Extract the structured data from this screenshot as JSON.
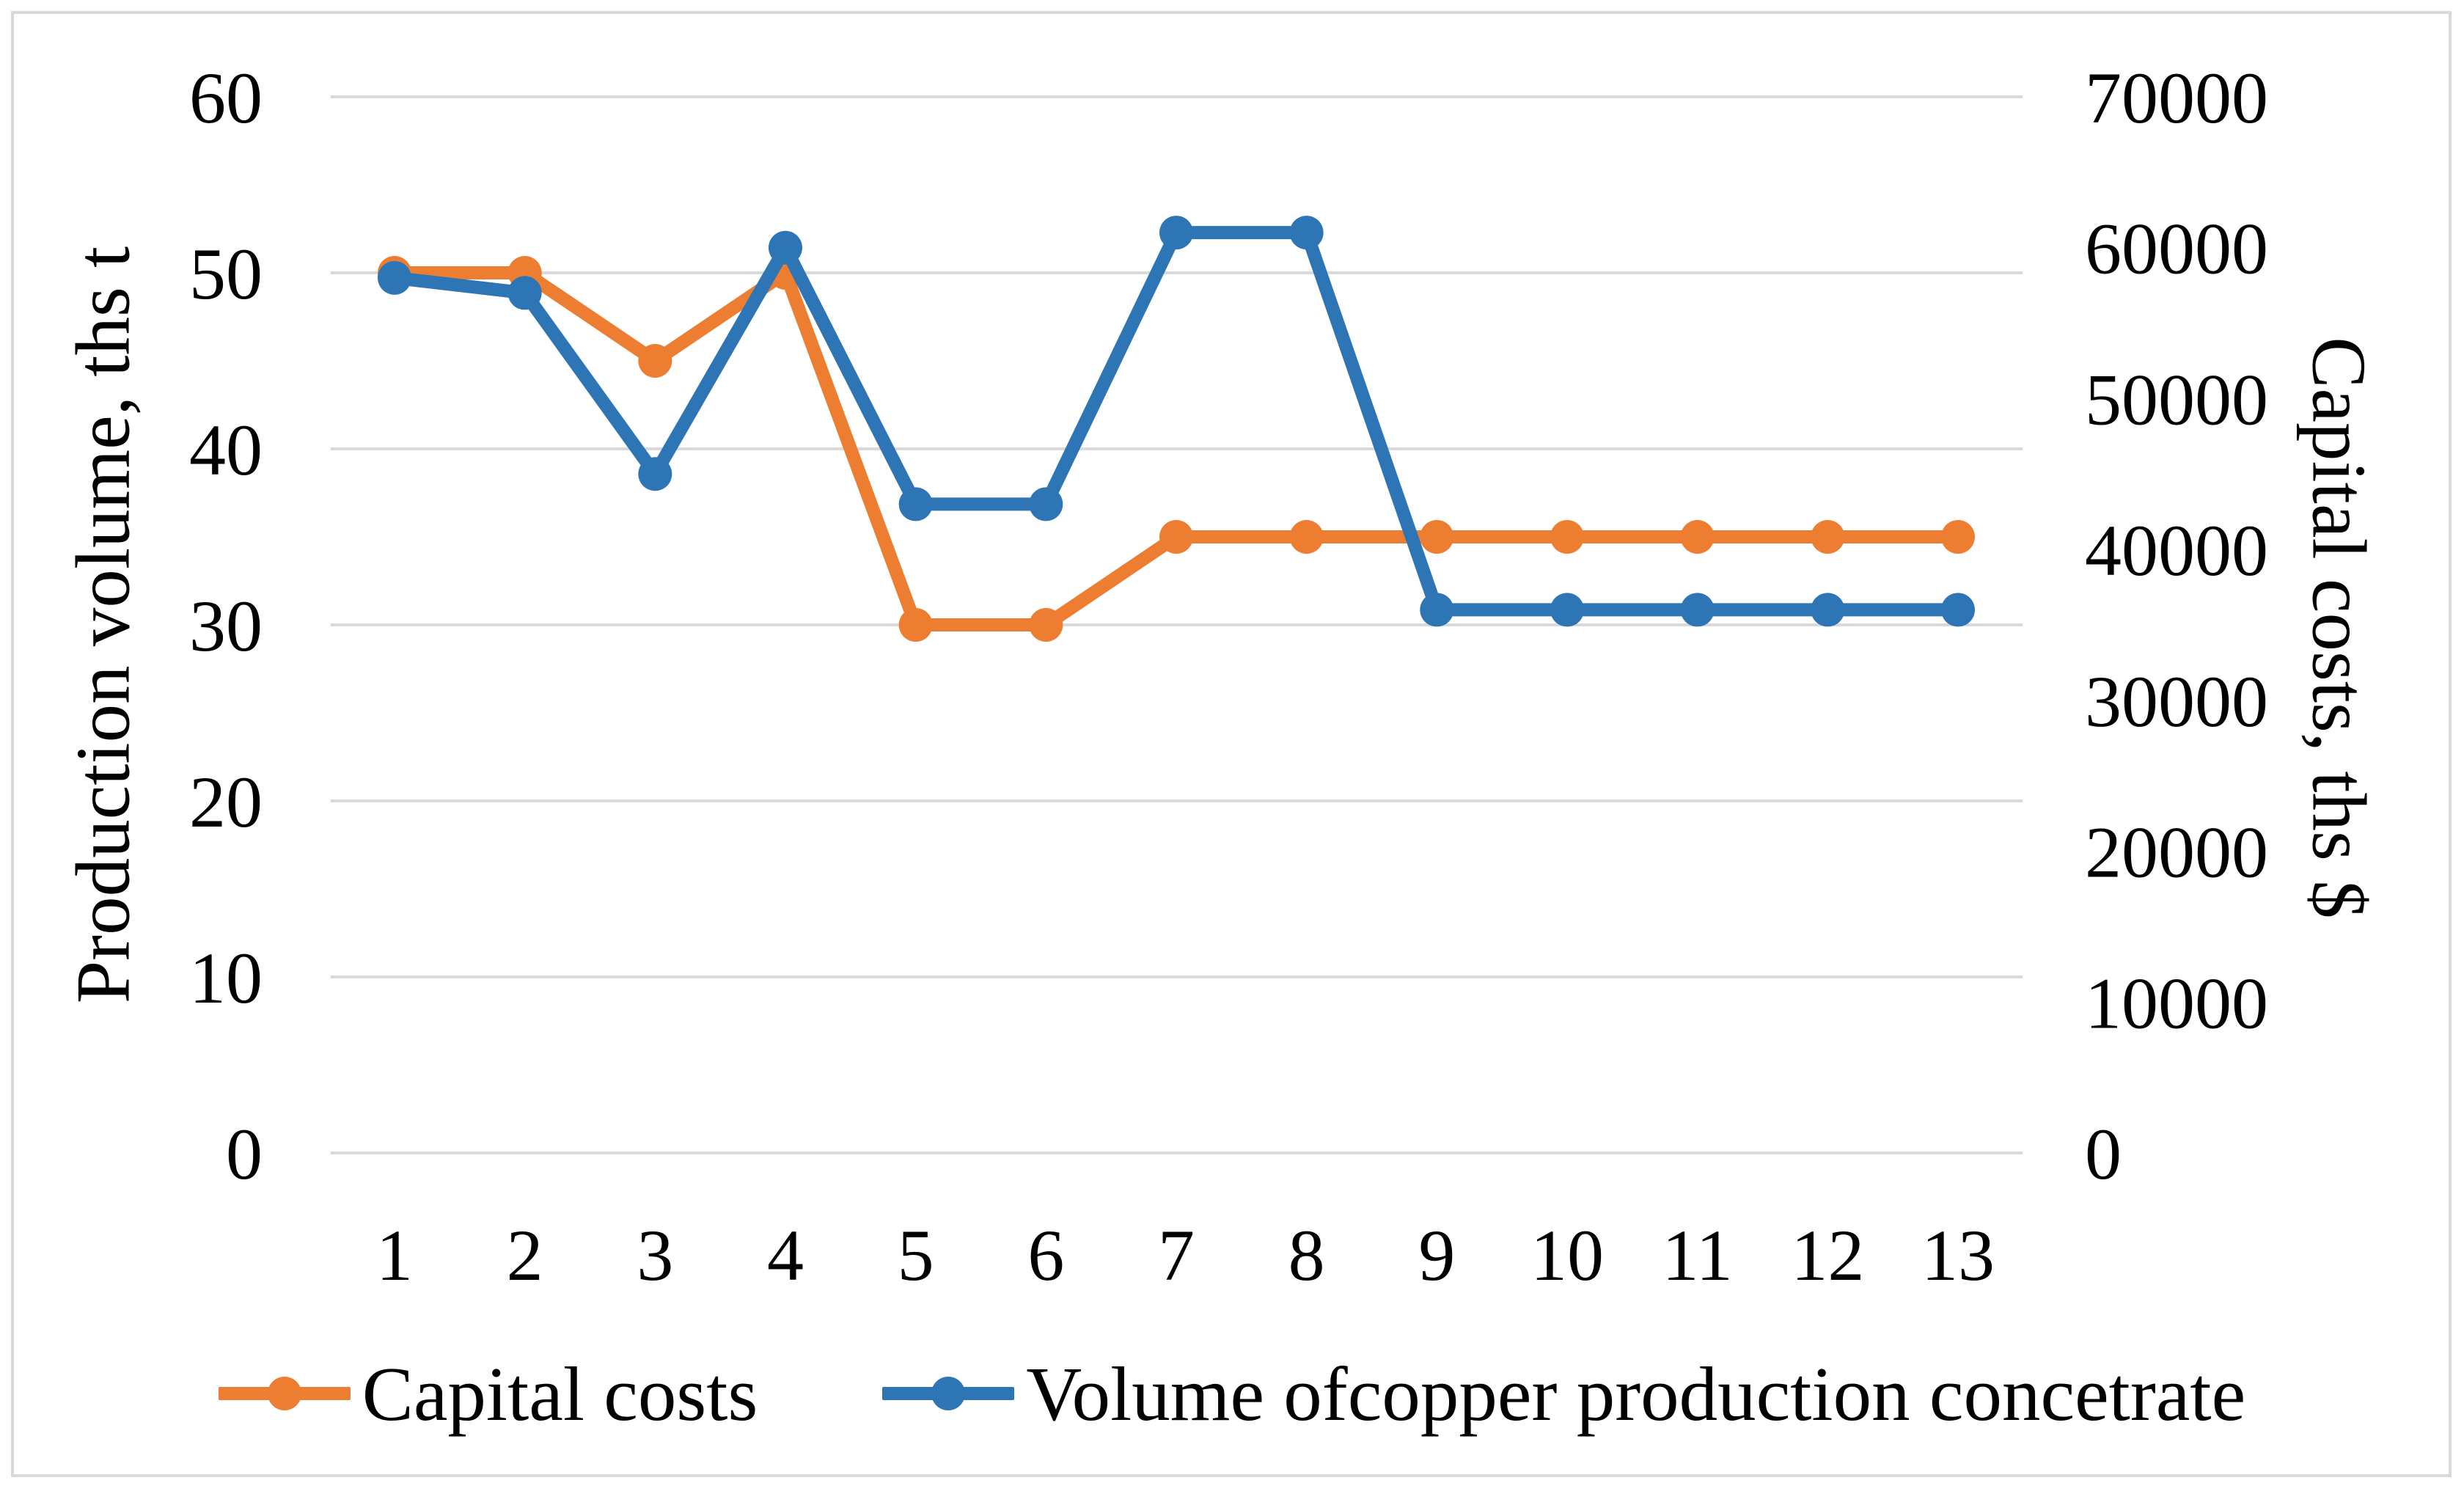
{
  "chart_data": {
    "type": "line",
    "x": [
      1,
      2,
      3,
      4,
      5,
      6,
      7,
      8,
      9,
      10,
      11,
      12,
      13
    ],
    "x_axis": {
      "tick_labels": [
        "1",
        "2",
        "3",
        "4",
        "5",
        "6",
        "7",
        "8",
        "9",
        "10",
        "11",
        "12",
        "13"
      ]
    },
    "left_axis": {
      "title": "Production volume, ths t",
      "min": 0,
      "max": 60,
      "ticks": [
        0,
        10,
        20,
        30,
        40,
        50,
        60
      ],
      "tick_labels": [
        "0",
        "10",
        "20",
        "30",
        "40",
        "50",
        "60"
      ]
    },
    "right_axis": {
      "title": "Capital costs, ths $",
      "min": 0,
      "max": 70000,
      "ticks": [
        0,
        10000,
        20000,
        30000,
        40000,
        50000,
        60000,
        70000
      ],
      "tick_labels": [
        "0",
        "10000",
        "20000",
        "30000",
        "40000",
        "50000",
        "60000",
        "70000"
      ]
    },
    "series": [
      {
        "name": "Capital costs",
        "axis": "left",
        "color": "#ED7D31",
        "values": [
          50,
          50,
          45,
          50,
          30,
          30,
          35,
          35,
          35,
          35,
          35,
          35,
          35
        ]
      },
      {
        "name": "Volume ofcopper production concetrate",
        "axis": "right",
        "color": "#2E75B6",
        "values": [
          58000,
          57000,
          45000,
          60000,
          43000,
          43000,
          61000,
          61000,
          36000,
          36000,
          36000,
          36000,
          36000
        ]
      }
    ],
    "legend": {
      "position": "bottom"
    },
    "grid": "horizontal",
    "gridline_color": "#D9D9D9",
    "background": "#FFFFFF",
    "border_color": "#D9D9D9"
  }
}
